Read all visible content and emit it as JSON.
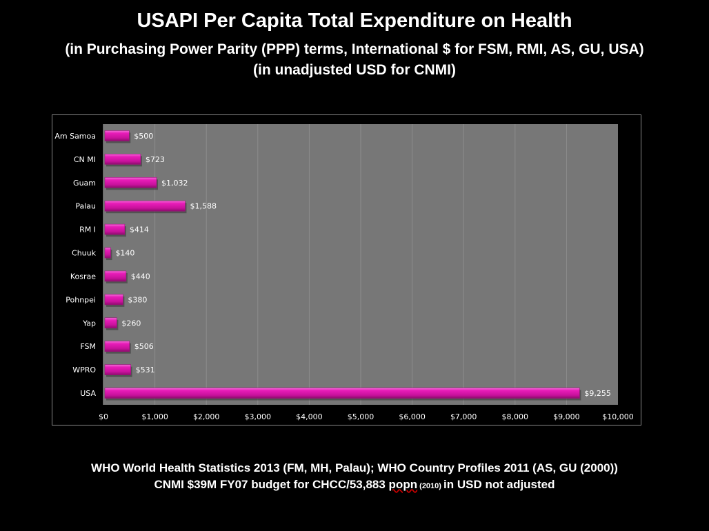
{
  "header": {
    "title": "USAPI Per Capita Total Expenditure on Health",
    "subtitle1": "(in Purchasing Power Parity (PPP) terms, International $ for FSM, RMI, AS, GU, USA)",
    "subtitle2": "(in unadjusted USD for CNMI)"
  },
  "footer": {
    "line1": "WHO World Health Statistics 2013 (FM, MH, Palau);  WHO Country Profiles 2011 (AS, GU (2000))",
    "line2_a": "CNMI $39M FY07 budget for CHCC/53,883 ",
    "line2_popn": "popn",
    "line2_year": " (2010) ",
    "line2_b": " in USD not adjusted"
  },
  "colors": {
    "bar": "#e020b0",
    "bar_dark": "#a0107c",
    "plot_bg": "#777777",
    "grid": "#8c8c8c"
  },
  "chart_data": {
    "type": "bar",
    "orientation": "horizontal",
    "title": "USAPI Per Capita Total Expenditure on Health",
    "xlabel": "",
    "ylabel": "",
    "categories": [
      "Am Samoa",
      "CNMI",
      "Guam",
      "Palau",
      "RMI",
      "Chuuk",
      "Kosrae",
      "Pohnpei",
      "Yap",
      "FSM",
      "WPRO",
      "USA"
    ],
    "category_labels": [
      "Am Samoa",
      "CN MI",
      "Guam",
      "Palau",
      "RM I",
      "Chuuk",
      "Kosrae",
      "Pohnpei",
      "Yap",
      "FSM",
      "WPRO",
      "USA"
    ],
    "values": [
      500,
      723,
      1032,
      1588,
      414,
      140,
      440,
      380,
      260,
      506,
      531,
      9255
    ],
    "data_labels": [
      "$500",
      "$723",
      "$1,032",
      "$1,588",
      "$414",
      "$140",
      "$440",
      "$380",
      "$260",
      "$506",
      "$531",
      "$9,255"
    ],
    "xlim": [
      0,
      10000
    ],
    "xticks": [
      0,
      1000,
      2000,
      3000,
      4000,
      5000,
      6000,
      7000,
      8000,
      9000,
      10000
    ],
    "xtick_labels": [
      "$0",
      "$1,000",
      "$2,000",
      "$3,000",
      "$4,000",
      "$5,000",
      "$6,000",
      "$7,000",
      "$8,000",
      "$9,000",
      "$10,000"
    ],
    "grid": true,
    "legend": "none"
  }
}
